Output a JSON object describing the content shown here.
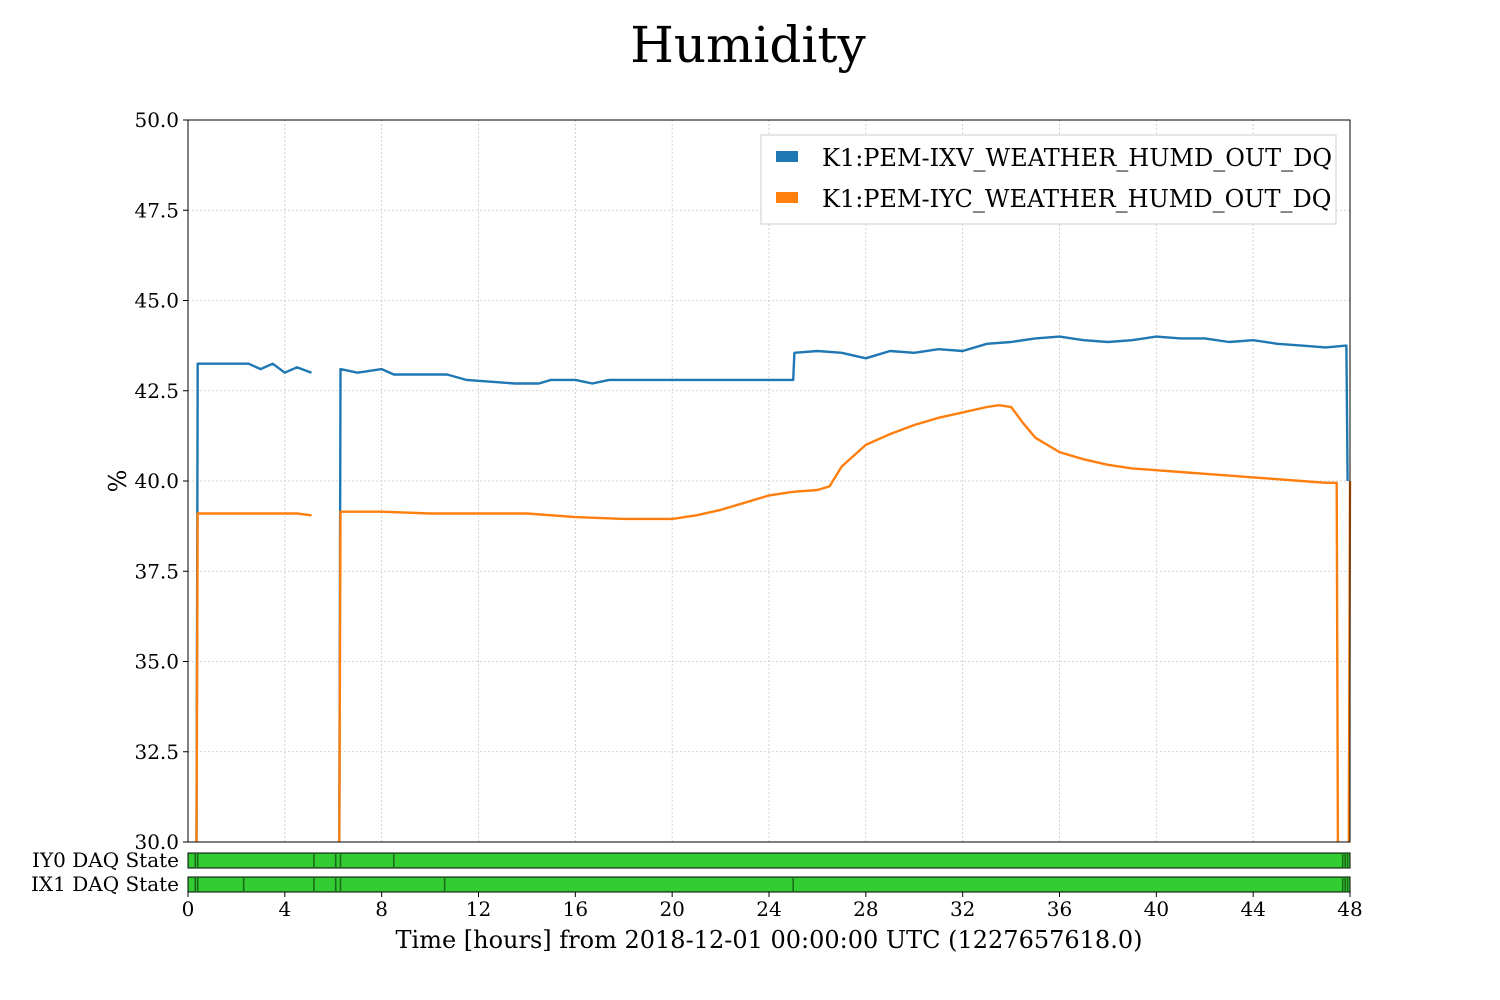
{
  "chart_data": {
    "type": "line",
    "title": "Humidity",
    "xlabel": "Time [hours] from 2018-12-01 00:00:00 UTC (1227657618.0)",
    "ylabel": "%",
    "xlim": [
      0,
      48
    ],
    "ylim": [
      30,
      50
    ],
    "x_ticks": [
      0,
      4,
      8,
      12,
      16,
      20,
      24,
      28,
      32,
      36,
      40,
      44,
      48
    ],
    "y_ticks": [
      30.0,
      32.5,
      35.0,
      37.5,
      40.0,
      42.5,
      45.0,
      47.5,
      50.0
    ],
    "grid": true,
    "legend_position": "top-right",
    "series": [
      {
        "name": "K1:PEM-IXV_WEATHER_HUMD_OUT_DQ",
        "color": "#1f77b4",
        "points": [
          [
            0.35,
            30.0
          ],
          [
            0.4,
            43.25
          ],
          [
            2.5,
            43.25
          ],
          [
            3.0,
            43.1
          ],
          [
            3.5,
            43.25
          ],
          [
            4.0,
            43.0
          ],
          [
            4.5,
            43.15
          ],
          [
            5.1,
            43.0
          ],
          [
            null,
            null
          ],
          [
            6.25,
            30.0
          ],
          [
            6.3,
            43.1
          ],
          [
            7.0,
            43.0
          ],
          [
            8.0,
            43.1
          ],
          [
            8.5,
            42.95
          ],
          [
            10.7,
            42.95
          ],
          [
            11.5,
            42.8
          ],
          [
            12.5,
            42.75
          ],
          [
            13.5,
            42.7
          ],
          [
            14.5,
            42.7
          ],
          [
            15.0,
            42.8
          ],
          [
            16.0,
            42.8
          ],
          [
            16.7,
            42.7
          ],
          [
            17.4,
            42.8
          ],
          [
            25.0,
            42.8
          ],
          [
            25.05,
            43.55
          ],
          [
            26.0,
            43.6
          ],
          [
            27.0,
            43.55
          ],
          [
            28.0,
            43.4
          ],
          [
            29.0,
            43.6
          ],
          [
            30.0,
            43.55
          ],
          [
            31.0,
            43.65
          ],
          [
            32.0,
            43.6
          ],
          [
            33.0,
            43.8
          ],
          [
            34.0,
            43.85
          ],
          [
            35.0,
            43.95
          ],
          [
            36.0,
            44.0
          ],
          [
            37.0,
            43.9
          ],
          [
            38.0,
            43.85
          ],
          [
            39.0,
            43.9
          ],
          [
            40.0,
            44.0
          ],
          [
            41.0,
            43.95
          ],
          [
            42.0,
            43.95
          ],
          [
            43.0,
            43.85
          ],
          [
            44.0,
            43.9
          ],
          [
            45.0,
            43.8
          ],
          [
            46.0,
            43.75
          ],
          [
            47.0,
            43.7
          ],
          [
            47.85,
            43.75
          ],
          [
            47.9,
            40.0
          ]
        ]
      },
      {
        "name": "K1:PEM-IYC_WEATHER_HUMD_OUT_DQ",
        "color": "#ff7f0e",
        "points": [
          [
            0.35,
            30.0
          ],
          [
            0.4,
            39.1
          ],
          [
            1.5,
            39.1
          ],
          [
            2.5,
            39.1
          ],
          [
            3.5,
            39.1
          ],
          [
            4.5,
            39.1
          ],
          [
            5.1,
            39.05
          ],
          [
            null,
            null
          ],
          [
            6.25,
            30.0
          ],
          [
            6.3,
            39.15
          ],
          [
            8.0,
            39.15
          ],
          [
            10.0,
            39.1
          ],
          [
            12.0,
            39.1
          ],
          [
            14.0,
            39.1
          ],
          [
            16.0,
            39.0
          ],
          [
            18.0,
            38.95
          ],
          [
            20.0,
            38.95
          ],
          [
            21.0,
            39.05
          ],
          [
            22.0,
            39.2
          ],
          [
            23.0,
            39.4
          ],
          [
            24.0,
            39.6
          ],
          [
            25.0,
            39.7
          ],
          [
            26.0,
            39.75
          ],
          [
            26.5,
            39.85
          ],
          [
            27.0,
            40.4
          ],
          [
            28.0,
            41.0
          ],
          [
            29.0,
            41.3
          ],
          [
            30.0,
            41.55
          ],
          [
            31.0,
            41.75
          ],
          [
            32.0,
            41.9
          ],
          [
            33.0,
            42.05
          ],
          [
            33.5,
            42.1
          ],
          [
            34.0,
            42.05
          ],
          [
            34.5,
            41.6
          ],
          [
            35.0,
            41.2
          ],
          [
            36.0,
            40.8
          ],
          [
            37.0,
            40.6
          ],
          [
            38.0,
            40.45
          ],
          [
            39.0,
            40.35
          ],
          [
            40.0,
            40.3
          ],
          [
            41.0,
            40.25
          ],
          [
            42.0,
            40.2
          ],
          [
            43.0,
            40.15
          ],
          [
            44.0,
            40.1
          ],
          [
            45.0,
            40.05
          ],
          [
            46.0,
            40.0
          ],
          [
            47.0,
            39.95
          ],
          [
            47.45,
            39.95
          ],
          [
            47.5,
            30.0
          ],
          [
            null,
            null
          ],
          [
            47.95,
            30.0
          ],
          [
            48.0,
            40.0
          ]
        ]
      }
    ],
    "state_bars": [
      {
        "label": "IY0 DAQ State",
        "color": "#33cc33",
        "markers": [
          0.3,
          0.4,
          5.2,
          6.1,
          6.3,
          8.5,
          47.7,
          47.8,
          47.9
        ]
      },
      {
        "label": "IX1 DAQ State",
        "color": "#33cc33",
        "markers": [
          0.3,
          0.4,
          2.3,
          5.2,
          6.1,
          6.3,
          10.6,
          25.0,
          47.7,
          47.8,
          47.9
        ]
      }
    ]
  }
}
